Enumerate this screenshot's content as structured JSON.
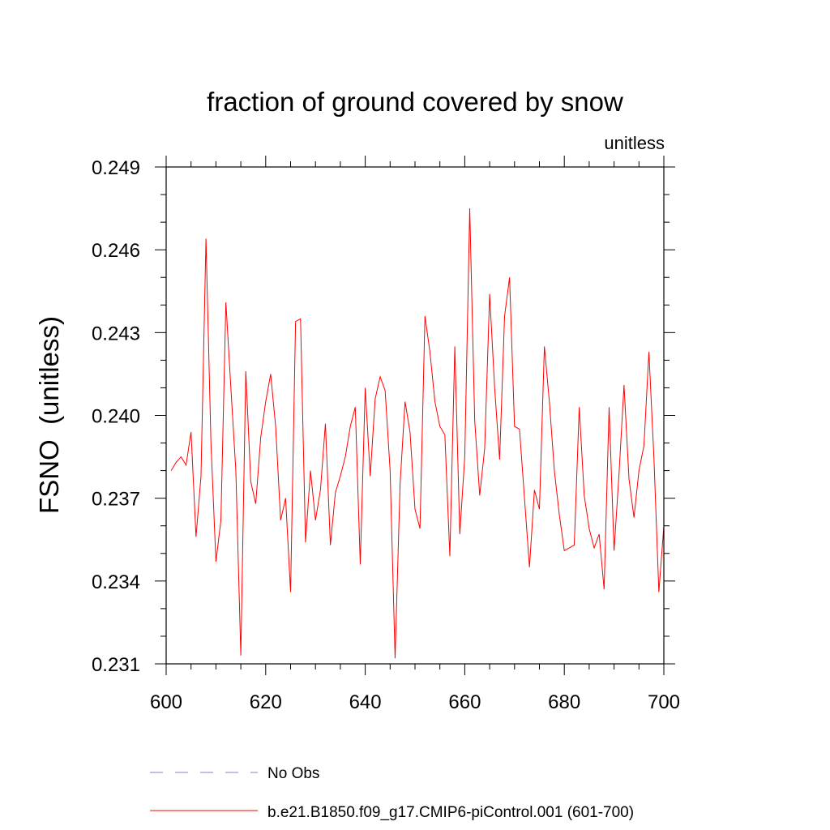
{
  "chart_data": {
    "type": "line",
    "title": "fraction of ground covered by snow",
    "units_label": "unitless",
    "ylabel": "FSNO  (unitless)",
    "xlim": [
      600,
      700
    ],
    "ylim": [
      0.231,
      0.249
    ],
    "xticks": [
      600,
      620,
      640,
      660,
      680,
      700
    ],
    "xtick_labels": [
      "600",
      "620",
      "640",
      "660",
      "680",
      "700"
    ],
    "yticks": [
      0.231,
      0.234,
      0.237,
      0.24,
      0.243,
      0.246,
      0.249
    ],
    "ytick_labels": [
      "0.231",
      "0.234",
      "0.237",
      "0.240",
      "0.243",
      "0.246",
      "0.249"
    ],
    "series": [
      {
        "name": "b.e21.B1850.f09_g17.CMIP6-piControl.001 (601-700)",
        "color": "#ff0000",
        "x": [
          601,
          602,
          603,
          604,
          605,
          606,
          607,
          608,
          609,
          610,
          611,
          612,
          613,
          614,
          615,
          616,
          617,
          618,
          619,
          620,
          621,
          622,
          623,
          624,
          625,
          626,
          627,
          628,
          629,
          630,
          631,
          632,
          633,
          634,
          635,
          636,
          637,
          638,
          639,
          640,
          641,
          642,
          643,
          644,
          645,
          646,
          647,
          648,
          649,
          650,
          651,
          652,
          653,
          654,
          655,
          656,
          657,
          658,
          659,
          660,
          661,
          662,
          663,
          664,
          665,
          666,
          667,
          668,
          669,
          670,
          671,
          672,
          673,
          674,
          675,
          676,
          677,
          678,
          679,
          680,
          681,
          682,
          683,
          684,
          685,
          686,
          687,
          688,
          689,
          690,
          691,
          692,
          693,
          694,
          695,
          696,
          697,
          698,
          699,
          700
        ],
        "values": [
          0.238,
          0.2383,
          0.2385,
          0.2382,
          0.2394,
          0.2356,
          0.2378,
          0.2464,
          0.239,
          0.2347,
          0.2362,
          0.2441,
          0.241,
          0.238,
          0.2313,
          0.2416,
          0.2376,
          0.2368,
          0.2392,
          0.2405,
          0.2415,
          0.2396,
          0.2362,
          0.237,
          0.2336,
          0.2434,
          0.2435,
          0.2354,
          0.238,
          0.2362,
          0.2373,
          0.2397,
          0.2353,
          0.2372,
          0.2378,
          0.2385,
          0.2396,
          0.2403,
          0.2346,
          0.241,
          0.2378,
          0.2406,
          0.2414,
          0.2409,
          0.238,
          0.2312,
          0.2375,
          0.2405,
          0.2394,
          0.2366,
          0.2359,
          0.2436,
          0.2423,
          0.2405,
          0.2396,
          0.2393,
          0.2349,
          0.2425,
          0.2357,
          0.2385,
          0.2475,
          0.2398,
          0.2371,
          0.2388,
          0.2444,
          0.241,
          0.2384,
          0.2436,
          0.245,
          0.2396,
          0.2395,
          0.237,
          0.2345,
          0.2373,
          0.2366,
          0.2425,
          0.2405,
          0.238,
          0.2364,
          0.2351,
          0.2352,
          0.2353,
          0.2403,
          0.2371,
          0.2359,
          0.2352,
          0.2357,
          0.2337,
          0.2403,
          0.2351,
          0.2379,
          0.2411,
          0.2377,
          0.2363,
          0.238,
          0.2389,
          0.2423,
          0.2385,
          0.2336,
          0.236
        ]
      }
    ],
    "legend": [
      {
        "label": "No Obs",
        "color": "#8080c0",
        "dashed": true
      },
      {
        "label": "b.e21.B1850.f09_g17.CMIP6-piControl.001 (601-700)",
        "color": "#ff0000",
        "dashed": false
      }
    ],
    "legend_position": "bottom-left",
    "grid": false
  }
}
